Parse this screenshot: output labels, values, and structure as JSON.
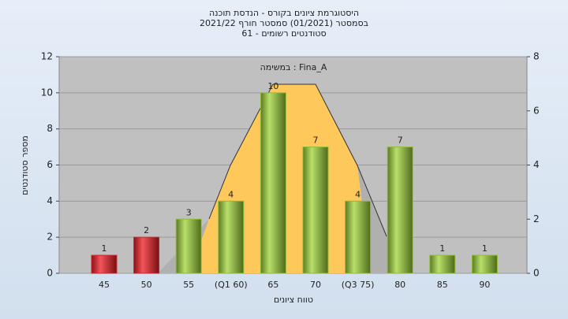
{
  "chart_data": {
    "type": "bar",
    "title": "היסטוגרמת ציונים בקורס - הנדסת תוכנה",
    "subtitle": [
      "בסמסטר (01/2021) סמסטר חורף 2021/22",
      "61 - סטודנטים רשומים"
    ],
    "annotation": "במשימה : Fina_A",
    "x_label": "טווח ציונים",
    "y_label": "מספר סטודנטים",
    "categories": [
      "45",
      "50",
      "55",
      "(Q1 60)",
      "65",
      "70",
      "(Q3 75)",
      "80",
      "85",
      "90"
    ],
    "values": [
      1,
      2,
      3,
      4,
      10,
      7,
      4,
      7,
      1,
      1
    ],
    "colors": [
      "#d9262c",
      "#d9262c",
      "#8fbc3a",
      "#8fbc3a",
      "#8fbc3a",
      "#8fbc3a",
      "#8fbc3a",
      "#8fbc3a",
      "#8fbc3a",
      "#8fbc3a"
    ],
    "ylim": [
      0,
      12
    ],
    "yticks": [
      0,
      2,
      4,
      6,
      8,
      10,
      12
    ],
    "y2lim": [
      0,
      8
    ],
    "y2ticks": [
      0,
      2,
      4,
      6,
      8
    ],
    "grid": true
  }
}
